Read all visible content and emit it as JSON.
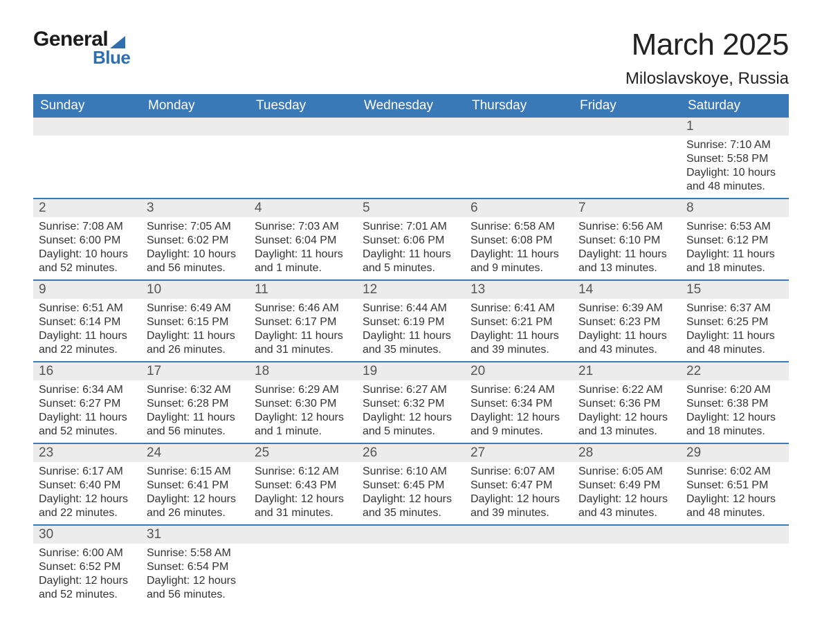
{
  "brand": {
    "line1": "General",
    "line2": "Blue",
    "accent_color": "#2f6fb0"
  },
  "header": {
    "month_title": "March 2025",
    "location": "Miloslavskoye, Russia"
  },
  "colors": {
    "header_bg": "#3a79b7",
    "header_text": "#ffffff",
    "daynum_bg": "#ececec",
    "row_border": "#3a79b7",
    "body_text": "#333333",
    "page_bg": "#ffffff"
  },
  "typography": {
    "month_title_fontsize": 44,
    "location_fontsize": 24,
    "weekday_fontsize": 19,
    "daynum_fontsize": 19,
    "body_fontsize": 16
  },
  "calendar": {
    "weekdays": [
      "Sunday",
      "Monday",
      "Tuesday",
      "Wednesday",
      "Thursday",
      "Friday",
      "Saturday"
    ],
    "weeks": [
      [
        null,
        null,
        null,
        null,
        null,
        null,
        {
          "day": "1",
          "sunrise": "Sunrise: 7:10 AM",
          "sunset": "Sunset: 5:58 PM",
          "daylight": "Daylight: 10 hours and 48 minutes."
        }
      ],
      [
        {
          "day": "2",
          "sunrise": "Sunrise: 7:08 AM",
          "sunset": "Sunset: 6:00 PM",
          "daylight": "Daylight: 10 hours and 52 minutes."
        },
        {
          "day": "3",
          "sunrise": "Sunrise: 7:05 AM",
          "sunset": "Sunset: 6:02 PM",
          "daylight": "Daylight: 10 hours and 56 minutes."
        },
        {
          "day": "4",
          "sunrise": "Sunrise: 7:03 AM",
          "sunset": "Sunset: 6:04 PM",
          "daylight": "Daylight: 11 hours and 1 minute."
        },
        {
          "day": "5",
          "sunrise": "Sunrise: 7:01 AM",
          "sunset": "Sunset: 6:06 PM",
          "daylight": "Daylight: 11 hours and 5 minutes."
        },
        {
          "day": "6",
          "sunrise": "Sunrise: 6:58 AM",
          "sunset": "Sunset: 6:08 PM",
          "daylight": "Daylight: 11 hours and 9 minutes."
        },
        {
          "day": "7",
          "sunrise": "Sunrise: 6:56 AM",
          "sunset": "Sunset: 6:10 PM",
          "daylight": "Daylight: 11 hours and 13 minutes."
        },
        {
          "day": "8",
          "sunrise": "Sunrise: 6:53 AM",
          "sunset": "Sunset: 6:12 PM",
          "daylight": "Daylight: 11 hours and 18 minutes."
        }
      ],
      [
        {
          "day": "9",
          "sunrise": "Sunrise: 6:51 AM",
          "sunset": "Sunset: 6:14 PM",
          "daylight": "Daylight: 11 hours and 22 minutes."
        },
        {
          "day": "10",
          "sunrise": "Sunrise: 6:49 AM",
          "sunset": "Sunset: 6:15 PM",
          "daylight": "Daylight: 11 hours and 26 minutes."
        },
        {
          "day": "11",
          "sunrise": "Sunrise: 6:46 AM",
          "sunset": "Sunset: 6:17 PM",
          "daylight": "Daylight: 11 hours and 31 minutes."
        },
        {
          "day": "12",
          "sunrise": "Sunrise: 6:44 AM",
          "sunset": "Sunset: 6:19 PM",
          "daylight": "Daylight: 11 hours and 35 minutes."
        },
        {
          "day": "13",
          "sunrise": "Sunrise: 6:41 AM",
          "sunset": "Sunset: 6:21 PM",
          "daylight": "Daylight: 11 hours and 39 minutes."
        },
        {
          "day": "14",
          "sunrise": "Sunrise: 6:39 AM",
          "sunset": "Sunset: 6:23 PM",
          "daylight": "Daylight: 11 hours and 43 minutes."
        },
        {
          "day": "15",
          "sunrise": "Sunrise: 6:37 AM",
          "sunset": "Sunset: 6:25 PM",
          "daylight": "Daylight: 11 hours and 48 minutes."
        }
      ],
      [
        {
          "day": "16",
          "sunrise": "Sunrise: 6:34 AM",
          "sunset": "Sunset: 6:27 PM",
          "daylight": "Daylight: 11 hours and 52 minutes."
        },
        {
          "day": "17",
          "sunrise": "Sunrise: 6:32 AM",
          "sunset": "Sunset: 6:28 PM",
          "daylight": "Daylight: 11 hours and 56 minutes."
        },
        {
          "day": "18",
          "sunrise": "Sunrise: 6:29 AM",
          "sunset": "Sunset: 6:30 PM",
          "daylight": "Daylight: 12 hours and 1 minute."
        },
        {
          "day": "19",
          "sunrise": "Sunrise: 6:27 AM",
          "sunset": "Sunset: 6:32 PM",
          "daylight": "Daylight: 12 hours and 5 minutes."
        },
        {
          "day": "20",
          "sunrise": "Sunrise: 6:24 AM",
          "sunset": "Sunset: 6:34 PM",
          "daylight": "Daylight: 12 hours and 9 minutes."
        },
        {
          "day": "21",
          "sunrise": "Sunrise: 6:22 AM",
          "sunset": "Sunset: 6:36 PM",
          "daylight": "Daylight: 12 hours and 13 minutes."
        },
        {
          "day": "22",
          "sunrise": "Sunrise: 6:20 AM",
          "sunset": "Sunset: 6:38 PM",
          "daylight": "Daylight: 12 hours and 18 minutes."
        }
      ],
      [
        {
          "day": "23",
          "sunrise": "Sunrise: 6:17 AM",
          "sunset": "Sunset: 6:40 PM",
          "daylight": "Daylight: 12 hours and 22 minutes."
        },
        {
          "day": "24",
          "sunrise": "Sunrise: 6:15 AM",
          "sunset": "Sunset: 6:41 PM",
          "daylight": "Daylight: 12 hours and 26 minutes."
        },
        {
          "day": "25",
          "sunrise": "Sunrise: 6:12 AM",
          "sunset": "Sunset: 6:43 PM",
          "daylight": "Daylight: 12 hours and 31 minutes."
        },
        {
          "day": "26",
          "sunrise": "Sunrise: 6:10 AM",
          "sunset": "Sunset: 6:45 PM",
          "daylight": "Daylight: 12 hours and 35 minutes."
        },
        {
          "day": "27",
          "sunrise": "Sunrise: 6:07 AM",
          "sunset": "Sunset: 6:47 PM",
          "daylight": "Daylight: 12 hours and 39 minutes."
        },
        {
          "day": "28",
          "sunrise": "Sunrise: 6:05 AM",
          "sunset": "Sunset: 6:49 PM",
          "daylight": "Daylight: 12 hours and 43 minutes."
        },
        {
          "day": "29",
          "sunrise": "Sunrise: 6:02 AM",
          "sunset": "Sunset: 6:51 PM",
          "daylight": "Daylight: 12 hours and 48 minutes."
        }
      ],
      [
        {
          "day": "30",
          "sunrise": "Sunrise: 6:00 AM",
          "sunset": "Sunset: 6:52 PM",
          "daylight": "Daylight: 12 hours and 52 minutes."
        },
        {
          "day": "31",
          "sunrise": "Sunrise: 5:58 AM",
          "sunset": "Sunset: 6:54 PM",
          "daylight": "Daylight: 12 hours and 56 minutes."
        },
        null,
        null,
        null,
        null,
        null
      ]
    ]
  }
}
